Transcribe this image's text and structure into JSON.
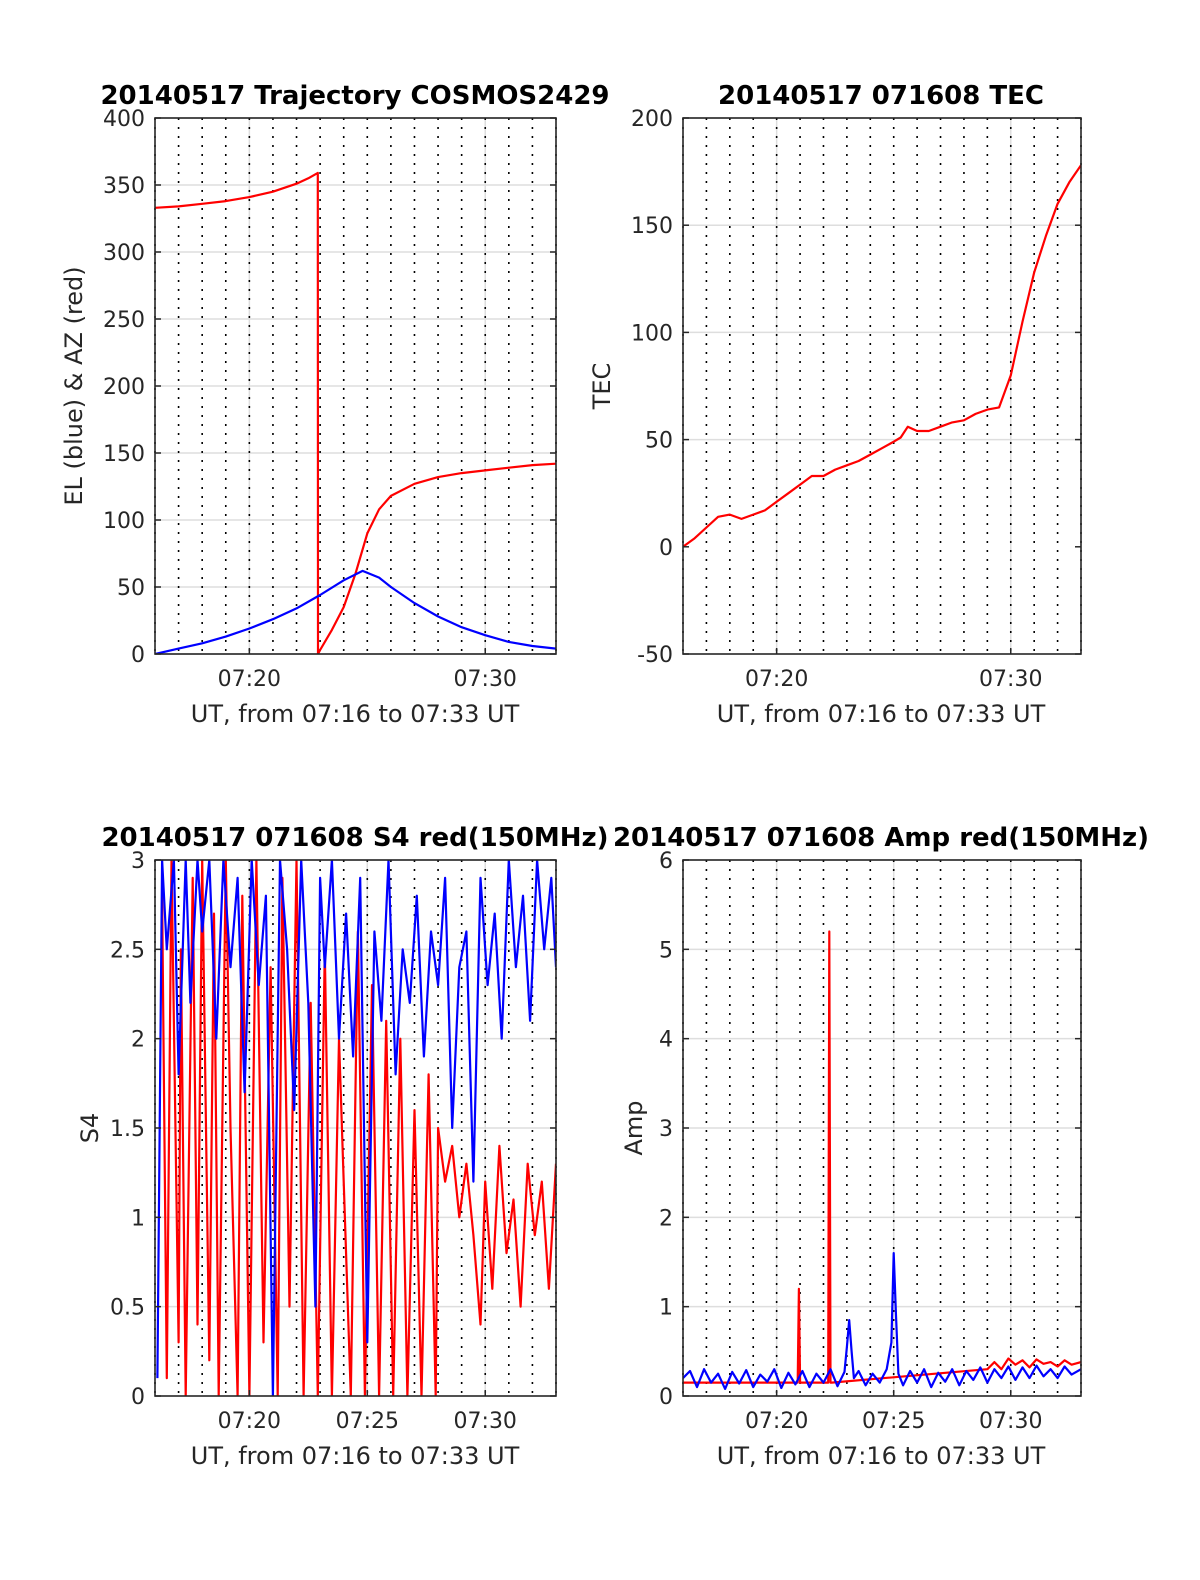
{
  "chart_data": [
    {
      "type": "line",
      "title": "20140517 Trajectory COSMOS2429",
      "xlabel": "UT, from 07:16 to 07:33 UT",
      "ylabel": "EL (blue) & AZ (red)",
      "xlim": [
        16,
        33
      ],
      "ylim": [
        0,
        400
      ],
      "yticks": [
        0,
        50,
        100,
        150,
        200,
        250,
        300,
        350,
        400
      ],
      "xticks": [
        {
          "v": 20,
          "label": "07:20"
        },
        {
          "v": 30,
          "label": "07:30"
        }
      ],
      "hgrid": [
        0,
        50,
        100,
        150,
        200,
        250,
        300,
        350,
        400
      ],
      "series": [
        {
          "color": "#ff0000",
          "x": [
            16,
            17,
            18,
            19,
            20,
            21,
            22,
            22.5,
            22.9,
            22.91,
            23.0,
            23.5,
            24,
            24.5,
            25,
            25.5,
            26,
            27,
            28,
            29,
            30,
            31,
            32,
            33
          ],
          "y": [
            333,
            334,
            336,
            338,
            341,
            345,
            351,
            355,
            359,
            0,
            3,
            18,
            35,
            60,
            90,
            108,
            118,
            127,
            132,
            135,
            137,
            139,
            141,
            142
          ]
        },
        {
          "color": "#0000ff",
          "x": [
            16,
            17,
            18,
            19,
            20,
            21,
            22,
            23,
            24,
            24.8,
            25.5,
            26,
            27,
            28,
            29,
            30,
            31,
            32,
            33
          ],
          "y": [
            0,
            4,
            8,
            13,
            19,
            26,
            34,
            44,
            55,
            62,
            57,
            50,
            38,
            28,
            20,
            14,
            9,
            6,
            4
          ]
        }
      ]
    },
    {
      "type": "line",
      "title": "20140517 071608 TEC",
      "xlabel": "UT, from 07:16 to 07:33 UT",
      "ylabel": "TEC",
      "xlim": [
        16,
        33
      ],
      "ylim": [
        -50,
        200
      ],
      "yticks": [
        -50,
        0,
        50,
        100,
        150,
        200
      ],
      "xticks": [
        {
          "v": 20,
          "label": "07:20"
        },
        {
          "v": 30,
          "label": "07:30"
        }
      ],
      "hgrid": [
        50,
        100,
        150,
        200
      ],
      "series": [
        {
          "color": "#ff0000",
          "x": [
            16,
            16.5,
            17,
            17.5,
            18,
            18.5,
            19,
            19.5,
            20,
            20.5,
            21,
            21.5,
            22,
            22.5,
            23,
            23.5,
            24,
            24.5,
            25,
            25.3,
            25.6,
            26,
            26.5,
            27,
            27.5,
            28,
            28.5,
            29,
            29.5,
            30,
            30.5,
            31,
            31.5,
            32,
            32.5,
            33
          ],
          "y": [
            0,
            4,
            9,
            14,
            15,
            13,
            15,
            17,
            21,
            25,
            29,
            33,
            33,
            36,
            38,
            40,
            43,
            46,
            49,
            51,
            56,
            54,
            54,
            56,
            58,
            59,
            62,
            64,
            65,
            80,
            105,
            128,
            145,
            160,
            170,
            178
          ]
        }
      ]
    },
    {
      "type": "line",
      "title": "20140517 071608 S4 red(150MHz)",
      "xlabel": "UT, from 07:16 to 07:33 UT",
      "ylabel": "S4",
      "xlim": [
        16,
        33
      ],
      "ylim": [
        0,
        3
      ],
      "yticks": [
        0,
        0.5,
        1,
        1.5,
        2,
        2.5,
        3
      ],
      "xticks": [
        {
          "v": 20,
          "label": "07:20"
        },
        {
          "v": 25,
          "label": "07:25"
        },
        {
          "v": 30,
          "label": "07:30"
        }
      ],
      "hgrid": [
        0.5,
        1,
        1.5,
        2,
        2.5,
        3
      ],
      "series": [
        {
          "color": "#ff0000",
          "x": [
            16.3,
            16.5,
            16.7,
            17.0,
            17.1,
            17.3,
            17.6,
            17.8,
            18.0,
            18.3,
            18.5,
            18.7,
            19.0,
            19.2,
            19.5,
            19.7,
            20.0,
            20.3,
            20.6,
            20.9,
            21.2,
            21.4,
            21.7,
            22.0,
            22.3,
            22.6,
            22.9,
            23.2,
            23.5,
            23.8,
            24.0,
            24.3,
            24.6,
            24.9,
            25.2,
            25.5,
            25.8,
            26.1,
            26.4,
            26.7,
            27.0,
            27.3,
            27.6,
            27.9,
            28.0,
            28.3,
            28.6,
            28.9,
            29.2,
            29.5,
            29.8,
            30.0,
            30.3,
            30.6,
            30.9,
            31.2,
            31.5,
            31.8,
            32.1,
            32.4,
            32.7,
            33.0
          ],
          "y": [
            2.8,
            0.1,
            3.0,
            0.3,
            2.5,
            0.0,
            2.9,
            0.4,
            3.0,
            0.2,
            2.7,
            0.0,
            3.0,
            1.5,
            0.0,
            2.8,
            0.0,
            3.0,
            0.3,
            2.4,
            0.0,
            2.9,
            0.5,
            3.0,
            0.0,
            2.2,
            0.0,
            2.5,
            0.0,
            2.0,
            1.2,
            0.0,
            2.6,
            0.0,
            2.3,
            0.0,
            2.1,
            0.0,
            2.0,
            0.0,
            1.6,
            0.0,
            1.8,
            0.0,
            1.5,
            1.2,
            1.4,
            1.0,
            1.3,
            0.9,
            0.4,
            1.2,
            0.6,
            1.4,
            0.8,
            1.1,
            0.5,
            1.3,
            0.9,
            1.2,
            0.6,
            1.3
          ]
        },
        {
          "color": "#0000ff",
          "x": [
            16.1,
            16.3,
            16.5,
            16.8,
            17.0,
            17.3,
            17.5,
            17.8,
            18.0,
            18.3,
            18.6,
            18.9,
            19.2,
            19.5,
            19.8,
            20.1,
            20.4,
            20.7,
            21.0,
            21.3,
            21.6,
            21.9,
            22.2,
            22.5,
            22.8,
            23.0,
            23.2,
            23.5,
            23.8,
            24.1,
            24.4,
            24.7,
            25.0,
            25.3,
            25.6,
            25.9,
            26.2,
            26.5,
            26.8,
            27.1,
            27.4,
            27.7,
            28.0,
            28.3,
            28.6,
            28.9,
            29.2,
            29.5,
            29.8,
            30.1,
            30.4,
            30.7,
            31.0,
            31.3,
            31.6,
            31.9,
            32.2,
            32.5,
            32.8,
            33.0
          ],
          "y": [
            0.1,
            3.0,
            2.5,
            3.0,
            1.8,
            3.0,
            2.2,
            3.0,
            2.6,
            3.0,
            2.0,
            3.0,
            2.4,
            2.9,
            1.7,
            3.0,
            2.3,
            2.8,
            0.0,
            3.0,
            2.5,
            1.6,
            3.0,
            2.2,
            0.5,
            2.9,
            2.4,
            3.0,
            2.0,
            2.7,
            1.9,
            2.9,
            0.3,
            2.6,
            2.1,
            3.0,
            1.8,
            2.5,
            2.2,
            2.8,
            1.9,
            2.6,
            2.3,
            2.9,
            1.5,
            2.4,
            2.6,
            1.2,
            2.9,
            2.3,
            2.7,
            2.0,
            3.0,
            2.4,
            2.8,
            2.1,
            3.0,
            2.5,
            2.9,
            2.4
          ]
        }
      ]
    },
    {
      "type": "line",
      "title": "20140517 071608 Amp red(150MHz)",
      "xlabel": "UT, from 07:16 to 07:33 UT",
      "ylabel": "Amp",
      "xlim": [
        16,
        33
      ],
      "ylim": [
        0,
        6
      ],
      "yticks": [
        0,
        1,
        2,
        3,
        4,
        5,
        6
      ],
      "xticks": [
        {
          "v": 20,
          "label": "07:20"
        },
        {
          "v": 25,
          "label": "07:25"
        },
        {
          "v": 30,
          "label": "07:30"
        }
      ],
      "hgrid": [
        1,
        2,
        3,
        4,
        5,
        6
      ],
      "series": [
        {
          "color": "#ff0000",
          "x": [
            16,
            20.9,
            20.95,
            21.0,
            21.05,
            22.2,
            22.25,
            22.3,
            22.35,
            29.0,
            29.3,
            29.6,
            29.9,
            30.2,
            30.5,
            30.8,
            31.1,
            31.4,
            31.7,
            32.0,
            32.3,
            32.6,
            33.0
          ],
          "y": [
            0.15,
            0.15,
            1.2,
            0.15,
            0.15,
            0.15,
            5.2,
            0.15,
            0.15,
            0.3,
            0.38,
            0.3,
            0.42,
            0.35,
            0.4,
            0.32,
            0.41,
            0.36,
            0.38,
            0.33,
            0.4,
            0.35,
            0.38
          ]
        },
        {
          "color": "#0000ff",
          "x": [
            16,
            16.3,
            16.6,
            16.9,
            17.2,
            17.5,
            17.8,
            18.1,
            18.4,
            18.7,
            19.0,
            19.3,
            19.6,
            19.9,
            20.2,
            20.5,
            20.8,
            21.1,
            21.4,
            21.7,
            22.0,
            22.3,
            22.6,
            22.9,
            23.0,
            23.1,
            23.2,
            23.3,
            23.5,
            23.8,
            24.1,
            24.4,
            24.7,
            24.9,
            25.0,
            25.1,
            25.2,
            25.4,
            25.7,
            26.0,
            26.3,
            26.6,
            26.9,
            27.2,
            27.5,
            27.8,
            28.1,
            28.4,
            28.7,
            29.0,
            29.3,
            29.6,
            29.9,
            30.2,
            30.5,
            30.8,
            31.1,
            31.4,
            31.7,
            32.0,
            32.3,
            32.6,
            33.0
          ],
          "y": [
            0.2,
            0.28,
            0.1,
            0.3,
            0.15,
            0.25,
            0.08,
            0.27,
            0.14,
            0.29,
            0.1,
            0.24,
            0.16,
            0.3,
            0.09,
            0.26,
            0.13,
            0.28,
            0.1,
            0.25,
            0.15,
            0.3,
            0.11,
            0.27,
            0.55,
            0.85,
            0.5,
            0.2,
            0.28,
            0.12,
            0.25,
            0.15,
            0.3,
            0.6,
            1.6,
            0.9,
            0.25,
            0.12,
            0.28,
            0.15,
            0.3,
            0.1,
            0.26,
            0.16,
            0.3,
            0.12,
            0.28,
            0.18,
            0.32,
            0.15,
            0.3,
            0.2,
            0.33,
            0.18,
            0.32,
            0.2,
            0.34,
            0.22,
            0.3,
            0.2,
            0.33,
            0.24,
            0.3
          ]
        }
      ]
    }
  ]
}
